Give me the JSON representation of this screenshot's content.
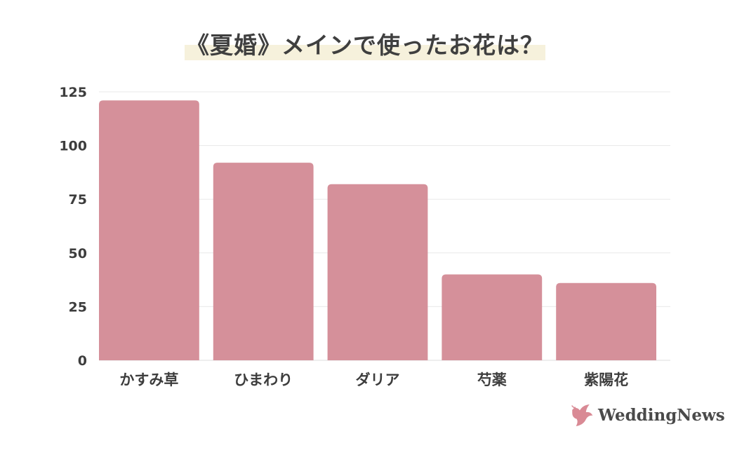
{
  "chart_data": {
    "type": "bar",
    "title": "《夏婚》メインで使ったお花は？",
    "categories": [
      "かすみ草",
      "ひまわり",
      "ダリア",
      "芍薬",
      "紫陽花"
    ],
    "values": [
      121,
      92,
      82,
      40,
      36
    ],
    "ylim": [
      0,
      125
    ],
    "yticks": [
      "0",
      "25",
      "50",
      "75",
      "100",
      "125"
    ],
    "grid": true,
    "bar_color": "#d5909a",
    "grid_color": "#e8e8e8"
  },
  "brand": {
    "name": "WeddingNews",
    "logo_icon": "dove-icon",
    "logo_color": "#d98a95"
  }
}
